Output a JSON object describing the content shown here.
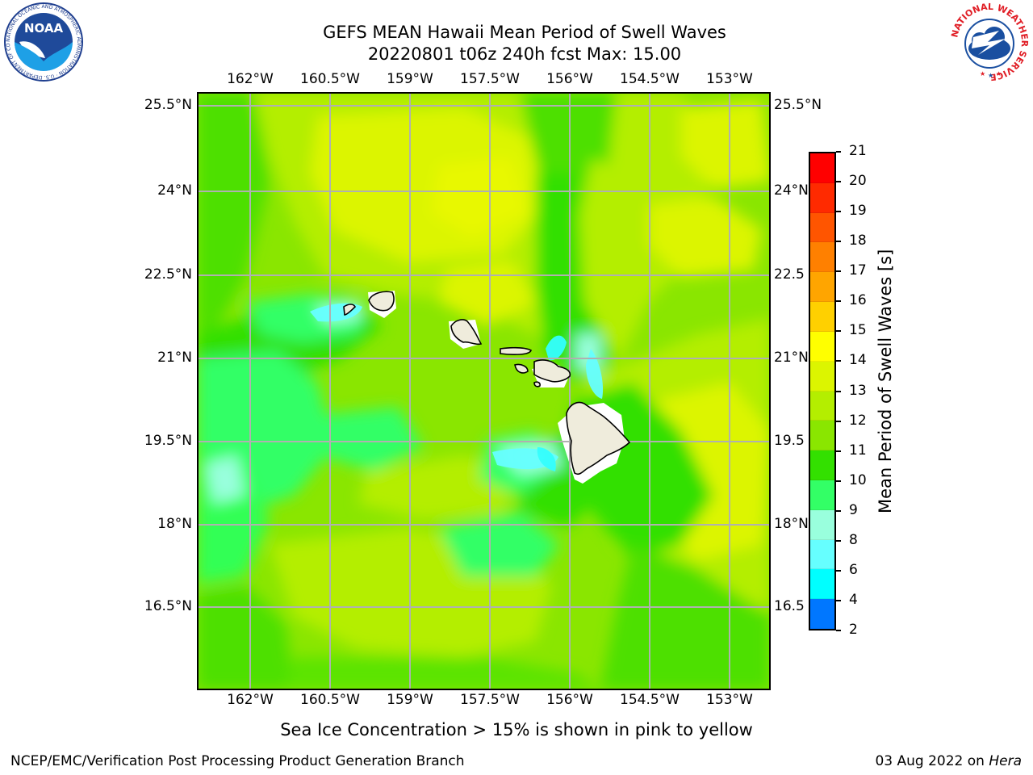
{
  "title": {
    "line1": "GEFS MEAN Hawaii Mean Period of Swell Waves",
    "line2": "20220801 t06z 240h fcst   Max: 15.00"
  },
  "map": {
    "lon_ticks": [
      "162°W",
      "160.5°W",
      "159°W",
      "157.5°W",
      "156°W",
      "154.5°W",
      "153°W"
    ],
    "lat_ticks": [
      "25.5°N",
      "24°N",
      "22.5°N",
      "21°N",
      "19.5°N",
      "18°N",
      "16.5°N"
    ],
    "right_lat_ticks": [
      "25.5°N",
      "24°N",
      "22.5",
      "21°N",
      "19.5",
      "18°N",
      "16.5"
    ]
  },
  "colorbar": {
    "label": "Mean Period of Swell Waves [s]",
    "ticks": [
      "21",
      "20",
      "19",
      "18",
      "17",
      "16",
      "15",
      "14",
      "13",
      "12",
      "11",
      "10",
      "9",
      "8",
      "6",
      "4",
      "2"
    ],
    "colors": [
      "#ff0000",
      "#ff2a00",
      "#ff5500",
      "#ff8000",
      "#ffa500",
      "#ffd000",
      "#ffff00",
      "#dcf500",
      "#b4ee00",
      "#8ae600",
      "#33e000",
      "#33ff66",
      "#99ffdd",
      "#66ffff",
      "#00ffff",
      "#0077ff",
      "#0000ff"
    ]
  },
  "caption": "Sea Ice Concentration > 15% is shown in pink to yellow",
  "footer": {
    "left": "NCEP/EMC/Verification Post Processing Product Generation Branch",
    "right_date": "03 Aug 2022 on ",
    "right_host": "Hera"
  },
  "logos": {
    "noaa_text": "NOAA",
    "noaa_ring": "NATIONAL OCEANIC AND ATMOSPHERIC ADMINISTRATION · U.S. DEPARTMENT OF COMMERCE",
    "nws_ring": "NATIONAL WEATHER SERVICE"
  }
}
